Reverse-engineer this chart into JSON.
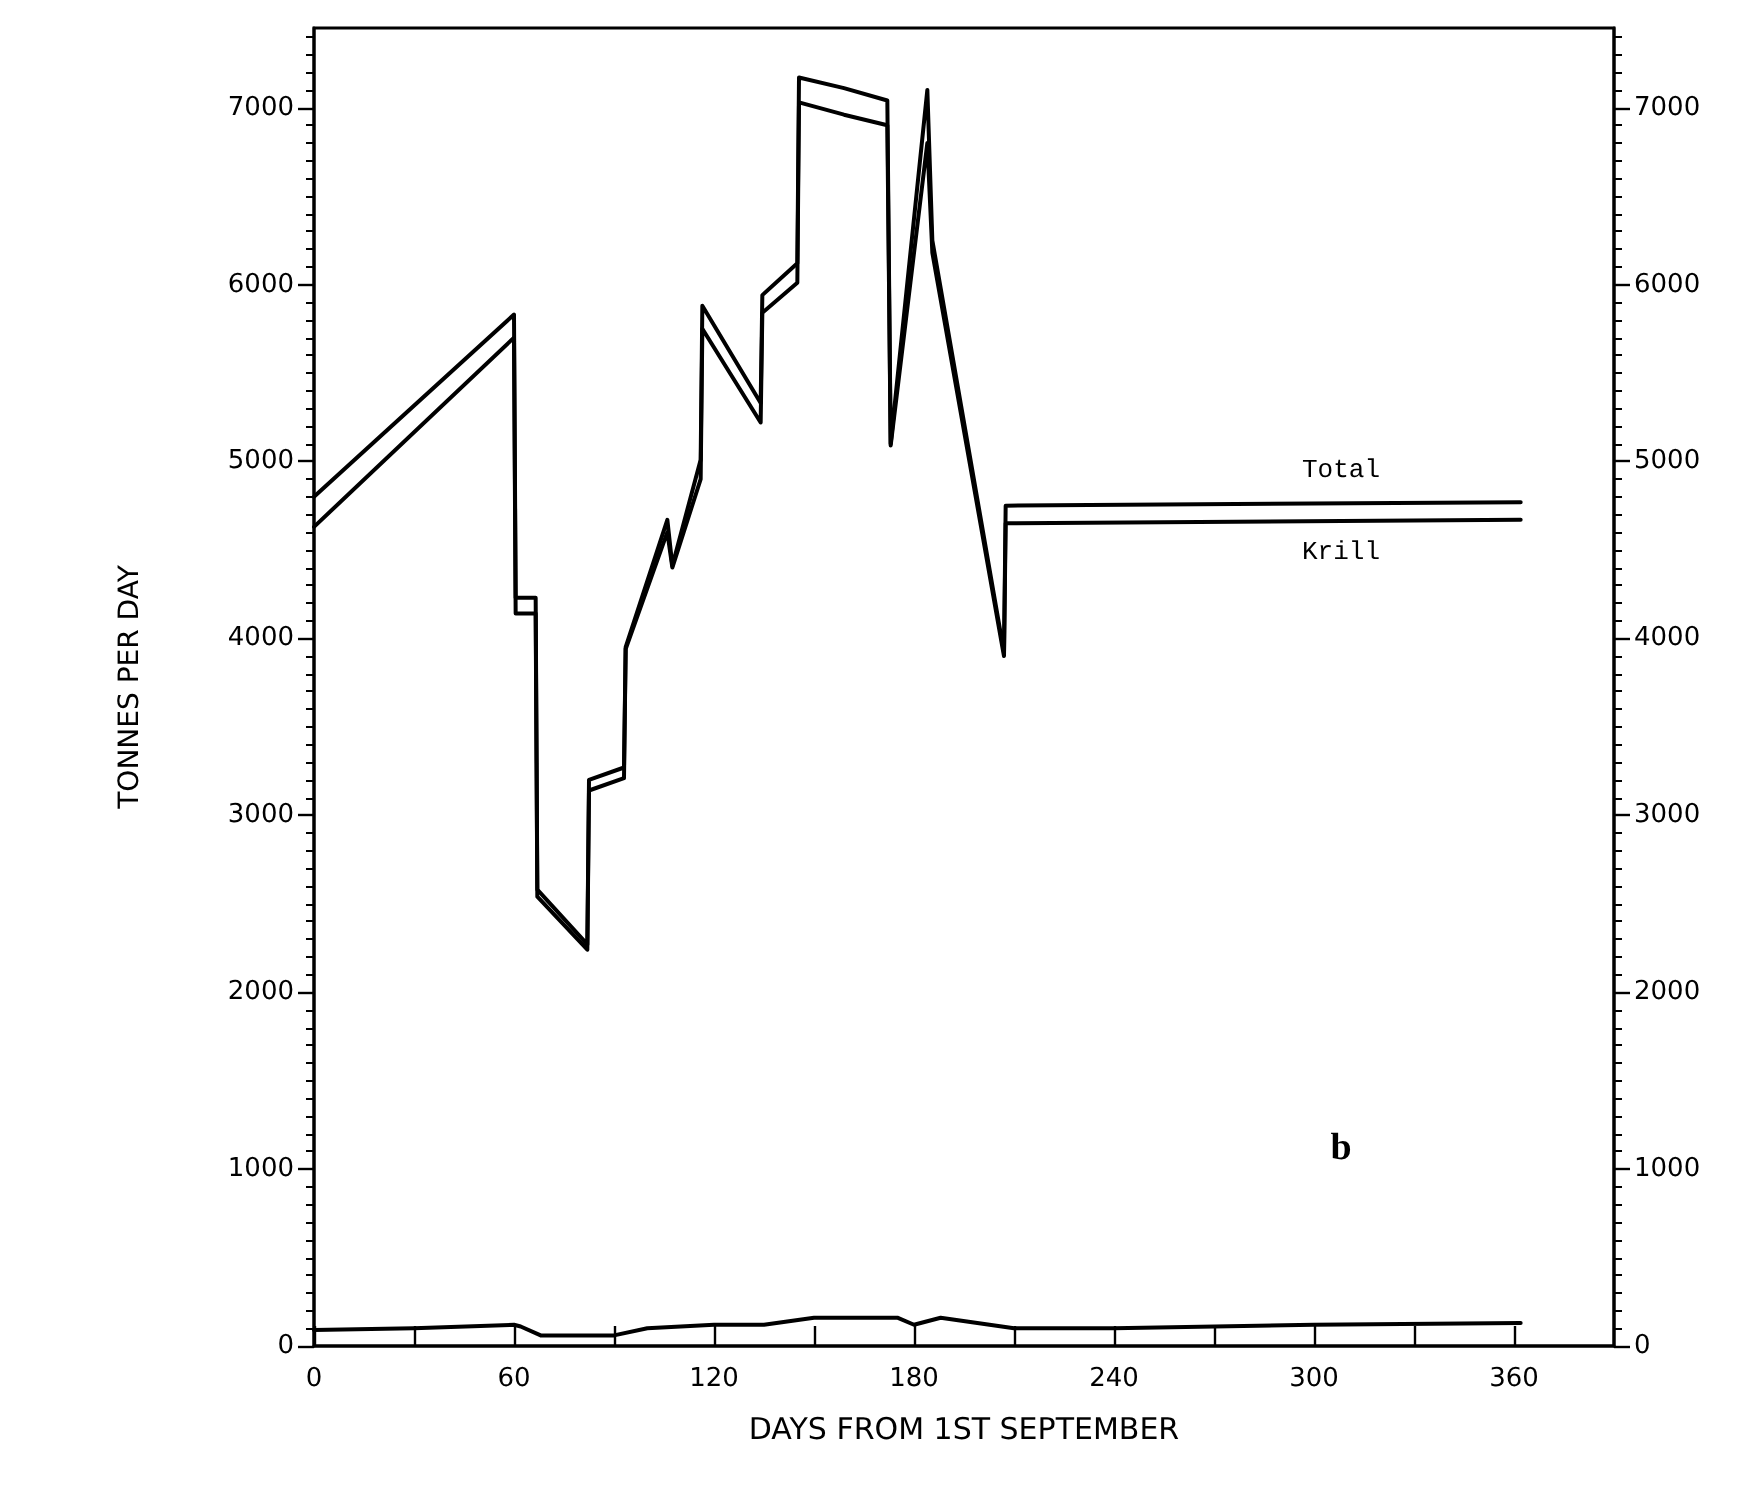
{
  "chart_data": {
    "type": "line",
    "xlabel": "DAYS FROM 1ST SEPTEMBER",
    "ylabel": "TONNES PER DAY",
    "xlim": [
      0,
      390
    ],
    "xticks": [
      0,
      {
        "value": 30,
        "label": null
      },
      60,
      {
        "value": 90,
        "label": null
      },
      120,
      {
        "value": 150,
        "label": null
      },
      180,
      {
        "value": 210,
        "label": null
      },
      240,
      {
        "value": 270,
        "label": null
      },
      300,
      {
        "value": 330,
        "label": null
      },
      360
    ],
    "ylim": [
      0,
      7450
    ],
    "yticks": [
      0,
      1000,
      2000,
      3000,
      4000,
      5000,
      6000,
      7000
    ],
    "y2lim": [
      0,
      7450
    ],
    "y2ticks": [
      0,
      1000,
      2000,
      3000,
      4000,
      5000,
      6000,
      7000
    ],
    "grid": false,
    "legend": false,
    "marker": "none",
    "line_style": "solid",
    "annotations": [
      "b"
    ],
    "series": [
      {
        "name": "Total",
        "color": "#000000",
        "x": [
          0,
          60,
          60.5,
          66.5,
          67,
          82,
          82.5,
          93,
          93.5,
          106,
          107.5,
          116,
          116.5,
          134,
          134.5,
          145,
          145.5,
          159,
          172,
          173,
          184,
          185.5,
          207,
          207.5,
          362
        ],
        "values": [
          4800,
          5830,
          4230,
          4230,
          2580,
          2270,
          3200,
          3270,
          3950,
          4670,
          4410,
          5010,
          5880,
          5330,
          5940,
          6120,
          7170,
          7110,
          7040,
          5100,
          7100,
          6250,
          3920,
          4750,
          4770
        ]
      },
      {
        "name": "Krill",
        "color": "#000000",
        "x": [
          0,
          60,
          60.5,
          66.5,
          67,
          82,
          82.5,
          93,
          93.5,
          106,
          107.5,
          116,
          116.5,
          134,
          134.5,
          145,
          145.5,
          159,
          172,
          173,
          184,
          185.5,
          207,
          207.5,
          362
        ],
        "values": [
          4630,
          5700,
          4140,
          4140,
          2540,
          2240,
          3140,
          3210,
          3940,
          4600,
          4400,
          4900,
          5750,
          5220,
          5840,
          6010,
          7030,
          6960,
          6900,
          5090,
          6800,
          6180,
          3900,
          4650,
          4670
        ]
      },
      {
        "color": "#000000",
        "x": [
          0,
          30,
          60,
          62,
          68,
          90,
          100,
          120,
          135,
          150,
          175,
          180,
          188,
          210,
          240,
          300,
          362
        ],
        "values": [
          90,
          100,
          120,
          110,
          60,
          60,
          100,
          120,
          120,
          160,
          160,
          120,
          160,
          100,
          100,
          120,
          130
        ]
      }
    ]
  }
}
